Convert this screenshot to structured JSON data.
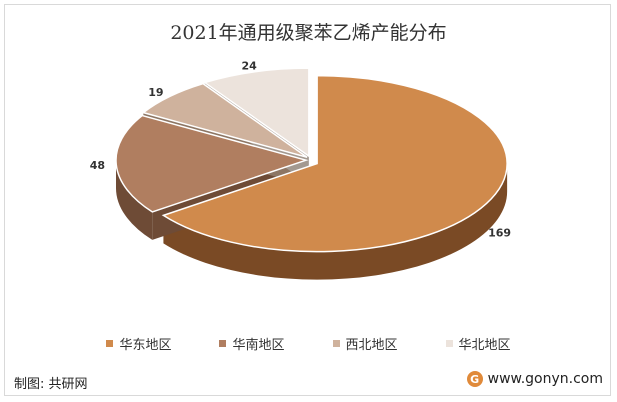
{
  "chart_data": {
    "type": "pie",
    "title": "2021年通用级聚苯乙烯产能分布",
    "categories": [
      "华东地区",
      "华南地区",
      "西北地区",
      "华北地区"
    ],
    "values": [
      169,
      48,
      19,
      24
    ],
    "colors": [
      "#d08a4c",
      "#b07e60",
      "#cfb29d",
      "#ece3dc"
    ],
    "side_colors": [
      "#7a4a25",
      "#6e4b36",
      "#8d7664",
      "#a39990"
    ],
    "legend_position": "bottom",
    "style": "3d"
  },
  "footer": {
    "source": "制图: 共研网",
    "website": "www.gonyn.com",
    "logo_glyph": "G"
  }
}
